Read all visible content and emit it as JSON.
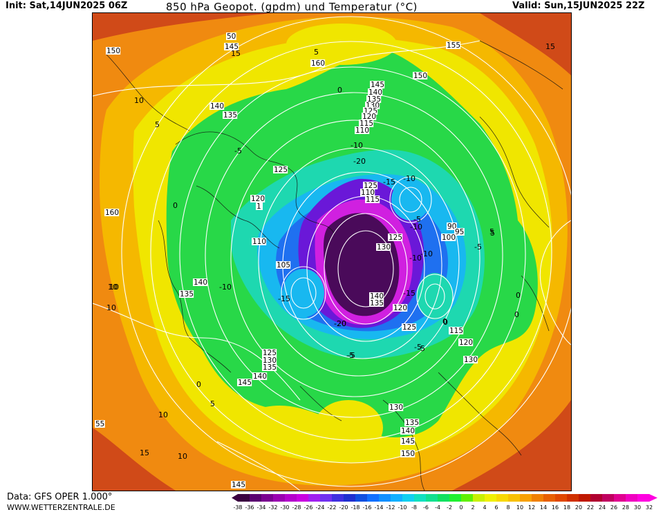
{
  "header": {
    "init": "Init: Sat,14JUN2025 06Z",
    "title": "850 hPa Geopot. (gpdm) und Temperatur (°C)",
    "valid": "Valid: Sun,15JUN2025 22Z"
  },
  "footer": {
    "data_source": "Data: GFS OPER 1.000°",
    "website": "WWW.WETTERZENTRALE.DE"
  },
  "colorbar": {
    "ticks": [
      "-38",
      "-36",
      "-34",
      "-32",
      "-30",
      "-28",
      "-26",
      "-24",
      "-22",
      "-20",
      "-18",
      "-16",
      "-14",
      "-12",
      "-10",
      "-8",
      "-6",
      "-4",
      "-2",
      "0",
      "2",
      "4",
      "6",
      "8",
      "10",
      "12",
      "14",
      "16",
      "18",
      "20",
      "22",
      "24",
      "26",
      "28",
      "30",
      "32"
    ],
    "colors": [
      "#3a0040",
      "#5a0070",
      "#7a0090",
      "#9a00b0",
      "#b400cc",
      "#c800e0",
      "#a020f0",
      "#7030f0",
      "#4030e0",
      "#2030d0",
      "#1050e0",
      "#1070ff",
      "#1090ff",
      "#10b0ff",
      "#10d0f0",
      "#10e0c0",
      "#10e090",
      "#10e060",
      "#20f030",
      "#60f000",
      "#c8f000",
      "#f0f000",
      "#f8d800",
      "#f8c000",
      "#f8a000",
      "#f08000",
      "#e86000",
      "#e04800",
      "#d03000",
      "#c01800",
      "#b00030",
      "#c00060",
      "#e00090",
      "#f000c0",
      "#ff00e0"
    ]
  },
  "map": {
    "temperature_colors": {
      "warm_red": "#d04a18",
      "orange": "#f08a10",
      "yellow_orange": "#f5b800",
      "yellow": "#f0e600",
      "green": "#28d848",
      "teal": "#1ed8b0",
      "cyan": "#18b8f0",
      "blue": "#1f70f0",
      "violet": "#6a18d8",
      "magenta": "#d020e0",
      "deep_purple": "#4a0a5a"
    },
    "geopotential_labels": [
      {
        "text": "150"
      },
      {
        "text": "145"
      },
      {
        "text": "50"
      },
      {
        "text": "160"
      },
      {
        "text": "155"
      },
      {
        "text": "150"
      },
      {
        "text": "145"
      },
      {
        "text": "140"
      },
      {
        "text": "135"
      },
      {
        "text": "130"
      },
      {
        "text": "125"
      },
      {
        "text": "120"
      },
      {
        "text": "115"
      },
      {
        "text": "110"
      },
      {
        "text": "140"
      },
      {
        "text": "135"
      },
      {
        "text": "125"
      },
      {
        "text": "120"
      },
      {
        "text": "160"
      },
      {
        "text": "110"
      },
      {
        "text": "105"
      },
      {
        "text": "140"
      },
      {
        "text": "135"
      },
      {
        "text": "125"
      },
      {
        "text": "110"
      },
      {
        "text": "115"
      },
      {
        "text": "125"
      },
      {
        "text": "130"
      },
      {
        "text": "140"
      },
      {
        "text": "135"
      },
      {
        "text": "120"
      },
      {
        "text": "125"
      },
      {
        "text": "90"
      },
      {
        "text": "95"
      },
      {
        "text": "100"
      },
      {
        "text": "115"
      },
      {
        "text": "120"
      },
      {
        "text": "130"
      },
      {
        "text": "125"
      },
      {
        "text": "130"
      },
      {
        "text": "135"
      },
      {
        "text": "140"
      },
      {
        "text": "145"
      },
      {
        "text": "130"
      },
      {
        "text": "135"
      },
      {
        "text": "140"
      },
      {
        "text": "145"
      },
      {
        "text": "150"
      },
      {
        "text": "145"
      },
      {
        "text": "55"
      },
      {
        "text": "1"
      }
    ],
    "temperature_labels": [
      {
        "text": "15"
      },
      {
        "text": "5"
      },
      {
        "text": "0"
      },
      {
        "text": "10"
      },
      {
        "text": "10"
      },
      {
        "text": "5"
      },
      {
        "text": "10"
      },
      {
        "text": "-5"
      },
      {
        "text": "0"
      },
      {
        "text": "-10"
      },
      {
        "text": "-20"
      },
      {
        "text": "-15"
      },
      {
        "text": "-10"
      },
      {
        "text": "-10"
      },
      {
        "text": "-15"
      },
      {
        "text": "-10"
      },
      {
        "text": "-20"
      },
      {
        "text": "-15"
      },
      {
        "text": "-10"
      },
      {
        "text": "-5"
      },
      {
        "text": "-5"
      },
      {
        "text": "0"
      },
      {
        "text": "5"
      },
      {
        "text": "0"
      },
      {
        "text": "-5"
      },
      {
        "text": "0"
      },
      {
        "text": "5"
      },
      {
        "text": "10"
      },
      {
        "text": "10"
      },
      {
        "text": "15"
      },
      {
        "text": "10"
      },
      {
        "text": "-5"
      },
      {
        "text": "-20"
      },
      {
        "text": "5"
      },
      {
        "text": "0"
      },
      {
        "text": "15"
      },
      {
        "text": "-10"
      },
      {
        "text": "-5"
      },
      {
        "text": "-5"
      },
      {
        "text": "0"
      }
    ]
  }
}
